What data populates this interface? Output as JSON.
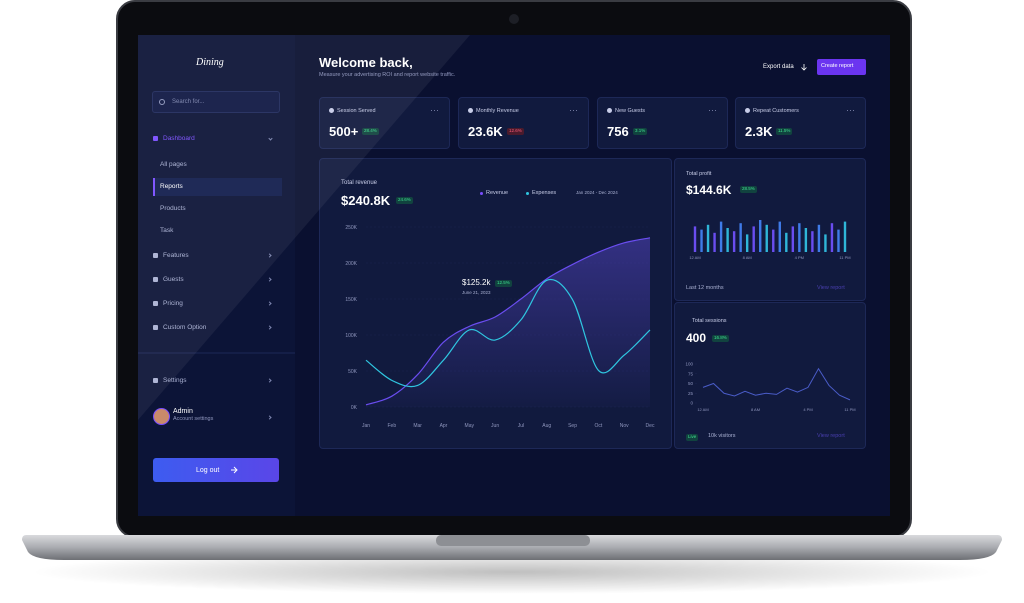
{
  "sidebar": {
    "logo": "Dining",
    "search_placeholder": "Search for...",
    "nav": [
      {
        "label": "Dashboard",
        "children": [
          "All pages",
          "Reports",
          "Products",
          "Task"
        ]
      },
      {
        "label": "Features"
      },
      {
        "label": "Guests"
      },
      {
        "label": "Pricing"
      },
      {
        "label": "Custom Option"
      }
    ],
    "settings": "Settings",
    "user": {
      "name": "Admin",
      "role": "Account settings"
    },
    "logout": "Log out"
  },
  "header": {
    "title": "Welcome back,",
    "subtitle": "Measure your advertising ROI and report website traffic.",
    "export": "Export data",
    "create": "Create report"
  },
  "stats": [
    {
      "label": "Session Served",
      "value": "500+",
      "change": "28.4%",
      "trend": "up"
    },
    {
      "label": "Monthly Revenue",
      "value": "23.6K",
      "change": "12.6%",
      "trend": "down"
    },
    {
      "label": "New Guests",
      "value": "756",
      "change": "3.1%",
      "trend": "up"
    },
    {
      "label": "Repeat Customers",
      "value": "2.3K",
      "change": "11.5%",
      "trend": "up"
    }
  ],
  "revenue": {
    "title": "Total revenue",
    "value": "$240.8K",
    "change": "24.6%",
    "date_range": "Jan 2024 - Dec 2024",
    "tooltip": {
      "value": "$125.2k",
      "change": "12.5%",
      "date": "June 21, 2023"
    },
    "chart": {
      "type": "line",
      "categories": [
        "Jan",
        "Feb",
        "Mar",
        "Apr",
        "May",
        "Jun",
        "Jul",
        "Aug",
        "Sep",
        "Oct",
        "Nov",
        "Dec"
      ],
      "series": [
        {
          "name": "Revenue",
          "color": "#6a4df0",
          "values": [
            3,
            15,
            45,
            90,
            112,
            125,
            150,
            178,
            198,
            215,
            228,
            235
          ]
        },
        {
          "name": "Expenses",
          "color": "#2fc6e0",
          "values": [
            65,
            37,
            30,
            65,
            107,
            93,
            121,
            176,
            149,
            51,
            72,
            107
          ]
        }
      ],
      "ylim": [
        0,
        250000
      ],
      "yticks": [
        {
          "value": 0,
          "label": "0K"
        },
        {
          "value": 50000,
          "label": "50K"
        },
        {
          "value": 100000,
          "label": "100K"
        },
        {
          "value": 150000,
          "label": "150K"
        },
        {
          "value": 200000,
          "label": "200K"
        },
        {
          "value": 250000,
          "label": "250K"
        }
      ],
      "unit": 1000
    }
  },
  "profit": {
    "title": "Total profit",
    "value": "$144.6K",
    "change": "28.5%",
    "period": "Last 12 months",
    "link": "View report",
    "chart": {
      "type": "bar",
      "categories": [
        "12 AM",
        null,
        null,
        null,
        null,
        null,
        null,
        null,
        "8 AM",
        null,
        null,
        null,
        null,
        null,
        null,
        null,
        "4 PM",
        null,
        null,
        null,
        null,
        null,
        null,
        "11 PM"
      ],
      "values": [
        80,
        70,
        85,
        60,
        95,
        75,
        65,
        90,
        55,
        80,
        100,
        85,
        70,
        95,
        60,
        80,
        90,
        75,
        65,
        85,
        55,
        90,
        70,
        95
      ],
      "colors": [
        "#6a4df0",
        "#3f7be8",
        "#2fb6d8"
      ],
      "ylim": [
        0,
        100
      ]
    }
  },
  "sessions": {
    "title": "Total sessions",
    "value": "400",
    "change": "16.8%",
    "live": "Live",
    "visitors": "10k visitors",
    "link": "View report",
    "chart": {
      "type": "line",
      "categories": [
        "12 AM",
        null,
        null,
        null,
        null,
        "8 AM",
        null,
        null,
        null,
        null,
        "4 PM",
        null,
        null,
        null,
        "11 PM"
      ],
      "values": [
        40,
        50,
        25,
        18,
        30,
        20,
        25,
        22,
        38,
        28,
        40,
        88,
        45,
        20,
        8
      ],
      "color": "#4a5cc8",
      "ylim": [
        0,
        100
      ],
      "yticks": [
        0,
        25,
        50,
        75,
        100
      ]
    }
  }
}
